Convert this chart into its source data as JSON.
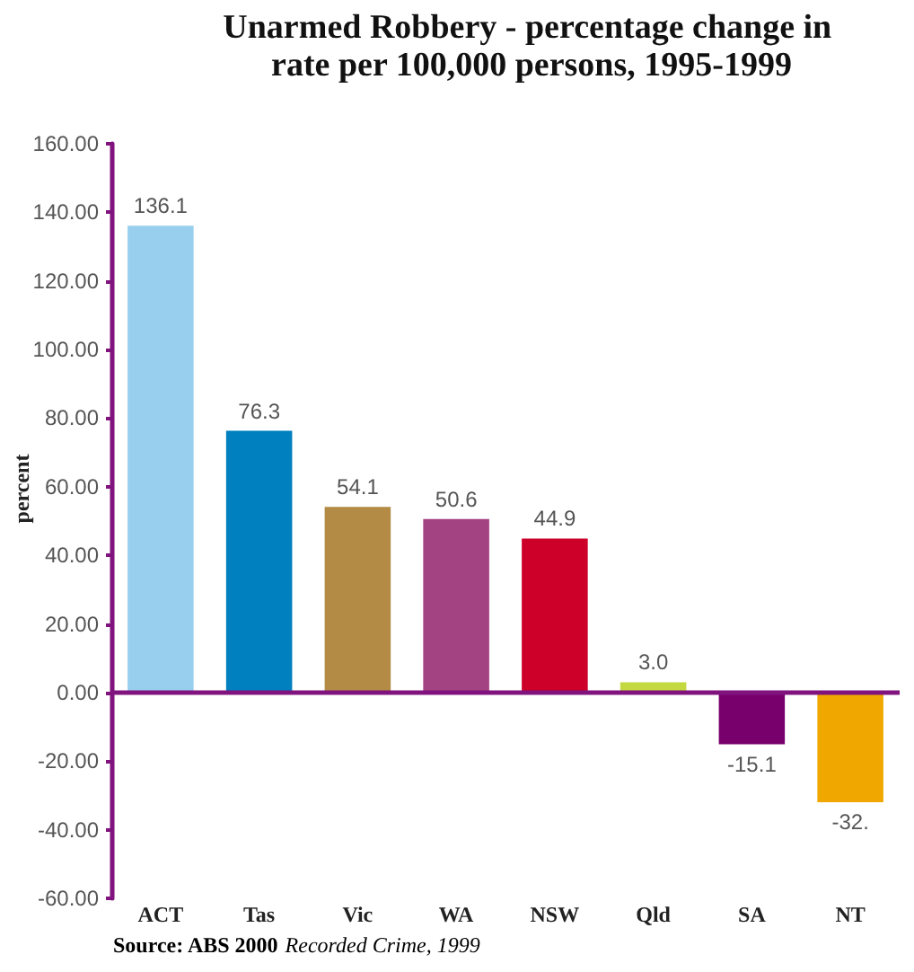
{
  "chart_data": {
    "type": "bar",
    "title": "Unarmed Robbery - percentage change in rate per 100,000 persons, 1995-1999",
    "ylabel": "percent",
    "annotations": [
      "Source: ABS 2000",
      "Recorded Crime, 1999"
    ],
    "categories": [
      "ACT",
      "Tas",
      "Vic",
      "WA",
      "NSW",
      "Qld",
      "SA",
      "NT"
    ],
    "values": [
      136.1,
      76.3,
      54.1,
      50.6,
      44.9,
      3.0,
      -15.1,
      -32.0
    ],
    "colors": [
      "#99cfee",
      "#0080bf",
      "#b38b45",
      "#a44382",
      "#cc0029",
      "#c4d940",
      "#78006c",
      "#f0a800"
    ],
    "value_labels": [
      "136.1",
      "76.3",
      "54.1",
      "50.6",
      "44.9",
      "3.0",
      "-15.1",
      "-32."
    ],
    "ylim": [
      -60,
      160
    ],
    "yticks": [
      {
        "value": -60,
        "label": "-60.00"
      },
      {
        "value": -40,
        "label": "-40.00"
      },
      {
        "value": -20,
        "label": "-20.00"
      },
      {
        "value": 0,
        "label": "0.00"
      },
      {
        "value": 20,
        "label": "20.00"
      },
      {
        "value": 40,
        "label": "40.00"
      },
      {
        "value": 60,
        "label": "60.00"
      },
      {
        "value": 80,
        "label": "80.00"
      },
      {
        "value": 100,
        "label": "100.00"
      },
      {
        "value": 120,
        "label": "120.00"
      },
      {
        "value": 140,
        "label": "140.00"
      },
      {
        "value": 160,
        "label": "160.00"
      }
    ],
    "ref_lines": [
      {
        "axis": "y",
        "value": 0,
        "color": "#80137e"
      }
    ],
    "grid": false
  }
}
